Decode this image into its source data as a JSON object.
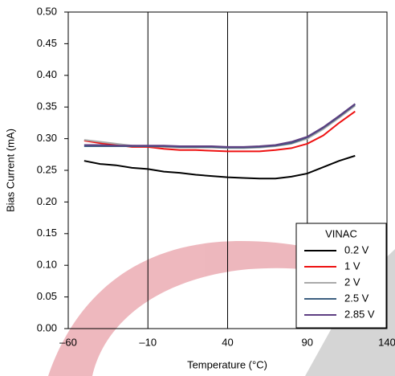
{
  "chart_data": {
    "type": "line",
    "x_label": "Temperature (°C)",
    "y_label": "Bias Current (mA)",
    "x": [
      -50,
      -40,
      -30,
      -20,
      -10,
      0,
      10,
      20,
      30,
      40,
      50,
      60,
      70,
      80,
      90,
      100,
      110,
      120
    ],
    "series": [
      {
        "name": "0.2 V",
        "color": "#000000",
        "values": [
          0.265,
          0.26,
          0.258,
          0.254,
          0.252,
          0.248,
          0.246,
          0.243,
          0.241,
          0.239,
          0.238,
          0.237,
          0.237,
          0.24,
          0.245,
          0.255,
          0.265,
          0.273
        ]
      },
      {
        "name": "1 V",
        "color": "#ee1111",
        "values": [
          0.297,
          0.293,
          0.29,
          0.287,
          0.287,
          0.284,
          0.282,
          0.282,
          0.281,
          0.28,
          0.28,
          0.28,
          0.282,
          0.285,
          0.292,
          0.305,
          0.325,
          0.343
        ]
      },
      {
        "name": "2 V",
        "color": "#aaaaaa",
        "values": [
          0.298,
          0.295,
          0.292,
          0.289,
          0.288,
          0.287,
          0.286,
          0.286,
          0.286,
          0.285,
          0.285,
          0.286,
          0.288,
          0.292,
          0.3,
          0.315,
          0.333,
          0.352
        ]
      },
      {
        "name": "2.5 V",
        "color": "#3d5f80",
        "values": [
          0.288,
          0.288,
          0.288,
          0.288,
          0.288,
          0.288,
          0.287,
          0.287,
          0.287,
          0.286,
          0.286,
          0.287,
          0.289,
          0.293,
          0.302,
          0.317,
          0.335,
          0.354
        ]
      },
      {
        "name": "2.85 V",
        "color": "#5e3f82",
        "values": [
          0.29,
          0.29,
          0.289,
          0.289,
          0.289,
          0.289,
          0.288,
          0.288,
          0.288,
          0.287,
          0.287,
          0.288,
          0.29,
          0.295,
          0.303,
          0.318,
          0.336,
          0.355
        ]
      }
    ],
    "legend_title": "VINAC",
    "legend": "lower right",
    "xlim": [
      -60,
      140
    ],
    "xticks": [
      {
        "value": -60,
        "label": "–60"
      },
      {
        "value": -10,
        "label": "–10"
      },
      40,
      90,
      140
    ],
    "ylim": [
      0,
      0.5
    ],
    "yticks": [
      {
        "value": 0,
        "label": "0.00"
      },
      0.05,
      {
        "value": 0.1,
        "label": "0.10"
      },
      0.15,
      {
        "value": 0.2,
        "label": "0.20"
      },
      0.25,
      {
        "value": 0.3,
        "label": "0.30"
      },
      0.35,
      {
        "value": 0.4,
        "label": "0.40"
      },
      0.45,
      {
        "value": 0.5,
        "label": "0.50"
      }
    ],
    "grid": "x"
  }
}
